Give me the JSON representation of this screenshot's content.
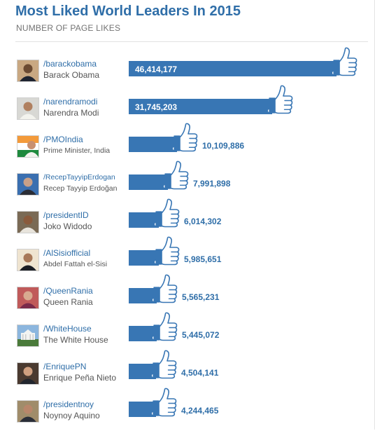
{
  "header": {
    "title": "Most Liked World Leaders In 2015",
    "subtitle": "NUMBER OF PAGE LIKES"
  },
  "colors": {
    "title": "#2f6ea8",
    "bar": "#3876b4",
    "value_outside": "#2f6ea8",
    "value_inside": "#ffffff"
  },
  "icons": {
    "bar_end": "thumbs-up-icon"
  },
  "chart_data": {
    "type": "bar",
    "orientation": "horizontal",
    "title": "Most Liked World Leaders In 2015",
    "subtitle": "NUMBER OF PAGE LIKES",
    "xlim": [
      0,
      46414177
    ],
    "grid": false,
    "legend": "none",
    "categories": [
      {
        "handle": "/barackobama",
        "name": "Barack Obama",
        "value": 46414177,
        "label": "46,414,177"
      },
      {
        "handle": "/narendramodi",
        "name": "Narendra Modi",
        "value": 31745203,
        "label": "31,745,203"
      },
      {
        "handle": "/PMOIndia",
        "name": "Prime Minister, India",
        "value": 10109886,
        "label": "10,109,886"
      },
      {
        "handle": "/RecepTayyipErdogan",
        "name": "Recep Tayyip Erdoğan",
        "value": 7991898,
        "label": "7,991,898"
      },
      {
        "handle": "/presidentID",
        "name": "Joko Widodo",
        "value": 6014302,
        "label": "6,014,302"
      },
      {
        "handle": "/AlSisiofficial",
        "name": "Abdel Fattah el-Sisi",
        "value": 5985651,
        "label": "5,985,651"
      },
      {
        "handle": "/QueenRania",
        "name": "Queen Rania",
        "value": 5565231,
        "label": "5,565,231"
      },
      {
        "handle": "/WhiteHouse",
        "name": "The White House",
        "value": 5445072,
        "label": "5,445,072"
      },
      {
        "handle": "/EnriquePN",
        "name": "Enrique Peña Nieto",
        "value": 4504141,
        "label": "4,504,141"
      },
      {
        "handle": "/presidentnoy",
        "name": "Noynoy Aquino",
        "value": 4244465,
        "label": "4,244,465"
      }
    ]
  }
}
